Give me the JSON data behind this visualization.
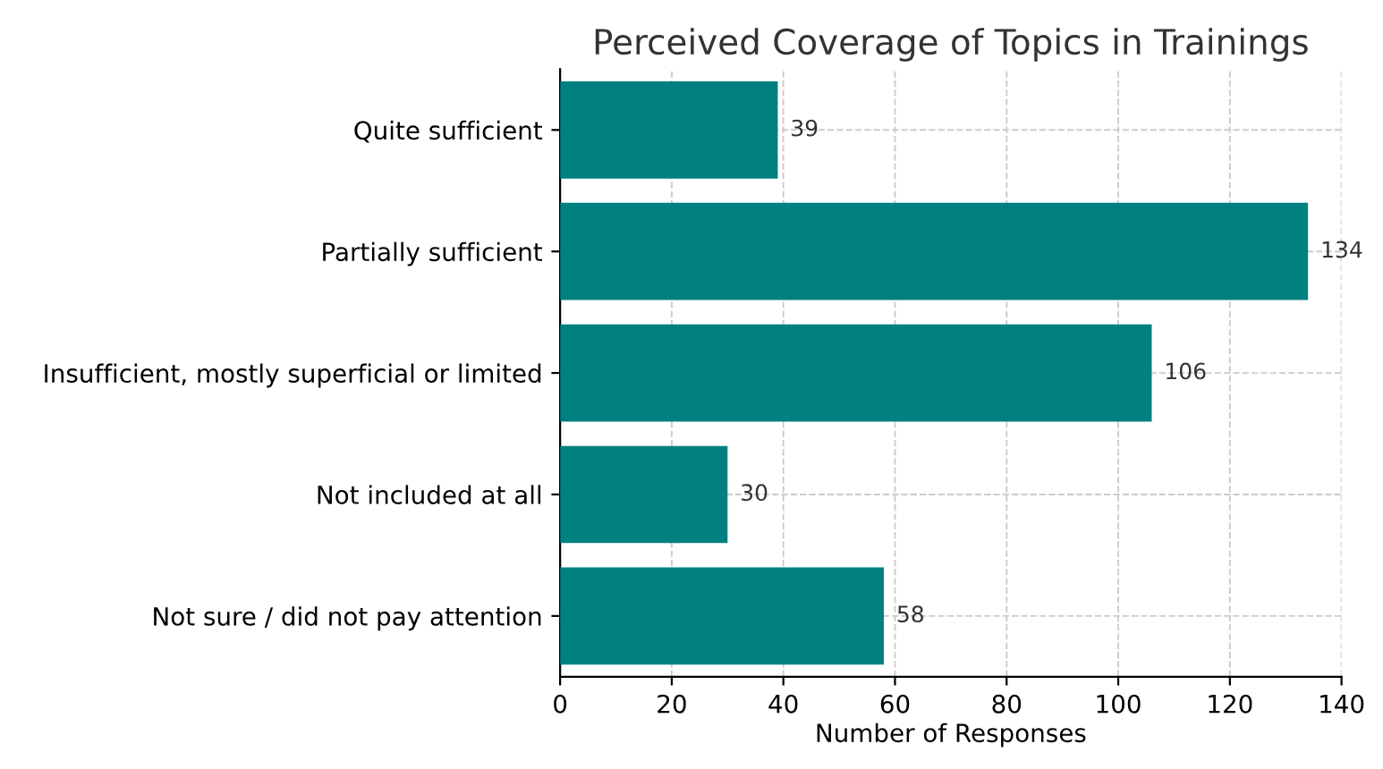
{
  "chart_data": {
    "type": "bar",
    "orientation": "horizontal",
    "title": "Perceived Coverage of Topics in Trainings",
    "xlabel": "Number of Responses",
    "categories": [
      "Quite sufficient",
      "Partially sufficient",
      "Insufficient, mostly superficial or limited",
      "Not included at all",
      "Not sure / did not pay attention"
    ],
    "values": [
      39,
      134,
      106,
      30,
      58
    ],
    "color": "#008080",
    "xlim": [
      0,
      140
    ],
    "xticks": [
      0,
      20,
      40,
      60,
      80,
      100,
      120,
      140
    ],
    "grid": true,
    "data_labels": true
  }
}
